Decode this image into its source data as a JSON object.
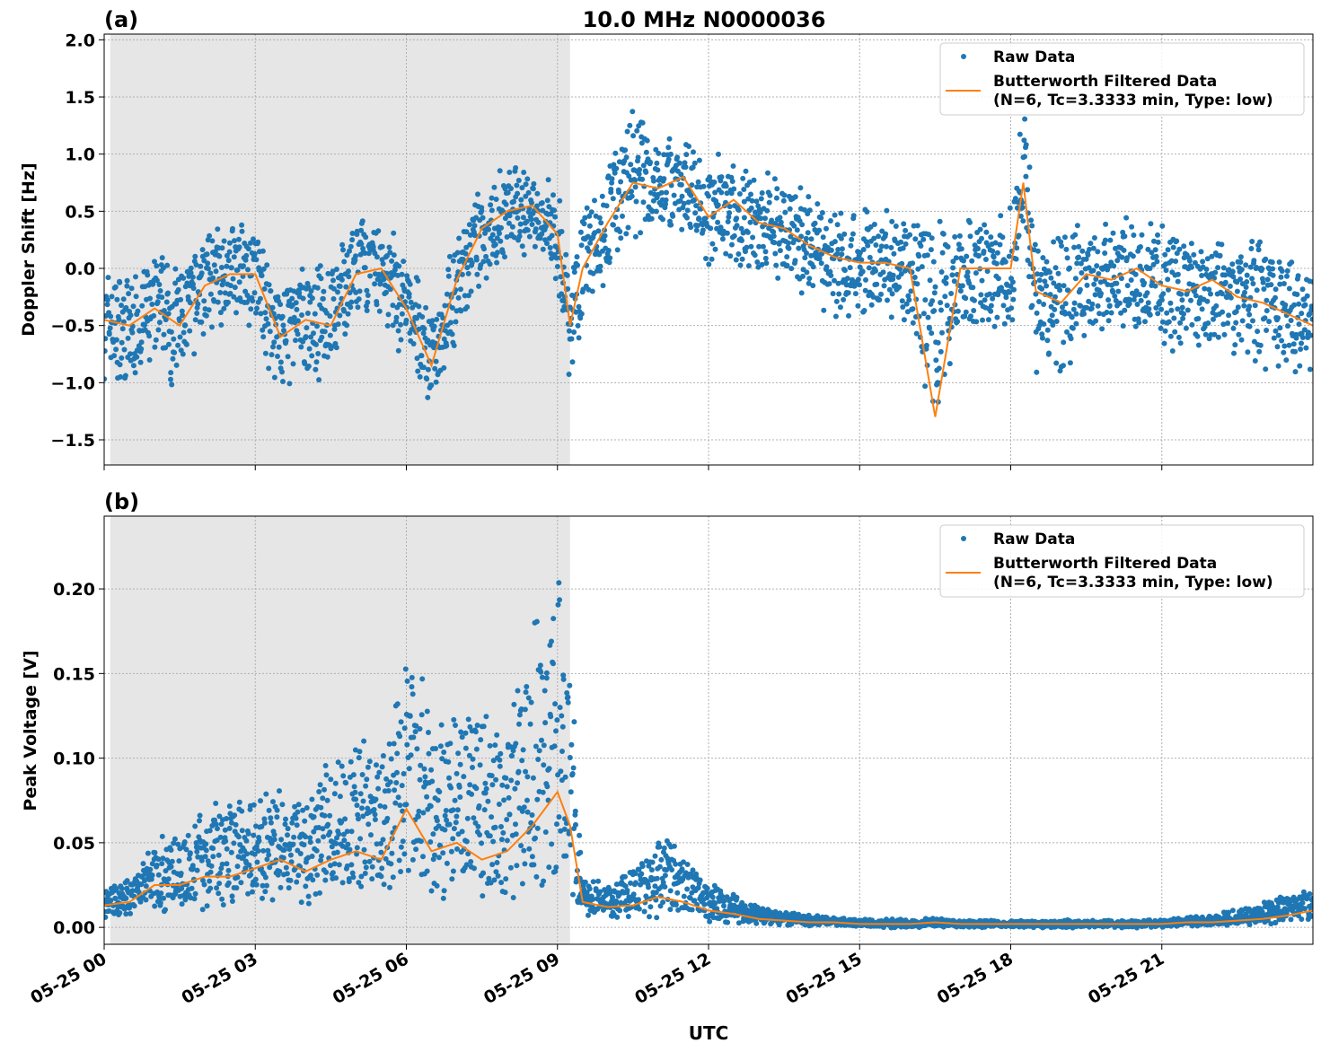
{
  "title": "10.0 MHz N0000036",
  "xlabel": "UTC",
  "x_ticks": [
    "05-25 00",
    "05-25 03",
    "05-25 06",
    "05-25 09",
    "05-25 12",
    "05-25 15",
    "05-25 18",
    "05-25 21"
  ],
  "legend": {
    "raw": "Raw Data",
    "filtered_line1": "Butterworth Filtered Data",
    "filtered_line2": "(N=6, Tc=3.3333 min, Type: low)"
  },
  "colors": {
    "raw": "#1f77b4",
    "filtered": "#ff7f0e",
    "shade": "#e6e6e6"
  },
  "chart_data": [
    {
      "type": "scatter",
      "panel_label": "(a)",
      "ylabel": "Doppler Shift [Hz]",
      "xlim_hours": [
        0,
        24
      ],
      "ylim": [
        -1.72,
        2.05
      ],
      "y_ticks": [
        "2.0",
        "1.5",
        "1.0",
        "0.5",
        "0.0",
        "−0.5",
        "−1.0",
        "−1.5"
      ],
      "y_tick_values": [
        2.0,
        1.5,
        1.0,
        0.5,
        0.0,
        -0.5,
        -1.0,
        -1.5
      ],
      "shaded_hours": [
        0.12,
        9.25
      ],
      "grid": true,
      "legend_position": "upper right",
      "x_hours": [
        0,
        0.5,
        1,
        1.5,
        2,
        2.5,
        3,
        3.5,
        4,
        4.5,
        5,
        5.5,
        6,
        6.5,
        7,
        7.5,
        8,
        8.5,
        9,
        9.25,
        9.5,
        10,
        10.5,
        11,
        11.5,
        12,
        12.5,
        13,
        13.5,
        14,
        14.5,
        15,
        15.5,
        16,
        16.5,
        17,
        17.5,
        18,
        18.25,
        18.5,
        19,
        19.5,
        20,
        20.5,
        21,
        21.5,
        22,
        22.5,
        23,
        23.5,
        24
      ],
      "filtered": [
        -0.45,
        -0.5,
        -0.35,
        -0.5,
        -0.15,
        -0.05,
        -0.05,
        -0.6,
        -0.45,
        -0.5,
        -0.05,
        0.0,
        -0.35,
        -0.85,
        -0.1,
        0.35,
        0.5,
        0.55,
        0.3,
        -0.5,
        0.0,
        0.4,
        0.75,
        0.7,
        0.8,
        0.45,
        0.6,
        0.4,
        0.35,
        0.2,
        0.1,
        0.05,
        0.05,
        0.0,
        -1.3,
        0.0,
        0.0,
        0.0,
        0.75,
        -0.2,
        -0.3,
        -0.05,
        -0.1,
        0.0,
        -0.15,
        -0.2,
        -0.1,
        -0.25,
        -0.3,
        -0.4,
        -0.5
      ],
      "raw_low": [
        -0.9,
        -1.0,
        -0.8,
        -1.0,
        -0.5,
        -0.4,
        -0.5,
        -1.1,
        -0.9,
        -0.9,
        -0.4,
        -0.4,
        -0.8,
        -1.2,
        -0.6,
        -0.1,
        0.1,
        0.2,
        -0.1,
        -1.1,
        -0.4,
        -0.1,
        0.3,
        0.3,
        0.4,
        0.05,
        0.1,
        0.0,
        -0.1,
        -0.2,
        -0.4,
        -0.4,
        -0.4,
        -0.4,
        -1.5,
        -0.5,
        -0.5,
        -0.5,
        0.2,
        -0.8,
        -0.9,
        -0.6,
        -0.6,
        -0.5,
        -0.6,
        -0.7,
        -0.6,
        -0.7,
        -0.8,
        -0.9,
        -0.9
      ],
      "raw_high": [
        0.0,
        -0.1,
        0.1,
        0.0,
        0.3,
        0.4,
        0.3,
        -0.1,
        0.0,
        0.0,
        0.4,
        0.4,
        0.1,
        -0.4,
        0.3,
        0.7,
        0.9,
        0.8,
        0.7,
        0.0,
        0.6,
        0.9,
        1.4,
        1.1,
        1.2,
        0.9,
        1.0,
        0.8,
        0.7,
        0.6,
        0.5,
        0.5,
        0.5,
        0.4,
        0.4,
        0.5,
        0.4,
        0.5,
        1.5,
        0.3,
        0.4,
        0.4,
        0.4,
        0.4,
        0.3,
        0.3,
        0.3,
        0.2,
        0.2,
        0.1,
        0.0
      ]
    },
    {
      "type": "scatter",
      "panel_label": "(b)",
      "ylabel": "Peak Voltage [V]",
      "xlim_hours": [
        0,
        24
      ],
      "ylim": [
        -0.01,
        0.243
      ],
      "y_ticks": [
        "0.20",
        "0.15",
        "0.10",
        "0.05",
        "0.00"
      ],
      "y_tick_values": [
        0.2,
        0.15,
        0.1,
        0.05,
        0.0
      ],
      "shaded_hours": [
        0.12,
        9.25
      ],
      "grid": true,
      "legend_position": "upper right",
      "x_hours": [
        0,
        0.5,
        1,
        1.5,
        2,
        2.5,
        3,
        3.5,
        4,
        4.5,
        5,
        5.5,
        6,
        6.5,
        7,
        7.5,
        8,
        8.5,
        9,
        9.25,
        9.5,
        10,
        10.5,
        11,
        11.5,
        12,
        12.5,
        13,
        13.5,
        14,
        14.5,
        15,
        15.5,
        16,
        16.5,
        17,
        17.5,
        18,
        18.5,
        19,
        19.5,
        20,
        20.5,
        21,
        21.5,
        22,
        22.5,
        23,
        23.5,
        24
      ],
      "filtered": [
        0.013,
        0.015,
        0.025,
        0.025,
        0.03,
        0.03,
        0.035,
        0.04,
        0.033,
        0.04,
        0.045,
        0.04,
        0.07,
        0.045,
        0.05,
        0.04,
        0.045,
        0.06,
        0.08,
        0.06,
        0.015,
        0.012,
        0.013,
        0.018,
        0.015,
        0.01,
        0.008,
        0.005,
        0.004,
        0.003,
        0.003,
        0.002,
        0.002,
        0.002,
        0.003,
        0.002,
        0.002,
        0.002,
        0.002,
        0.002,
        0.002,
        0.002,
        0.002,
        0.002,
        0.003,
        0.003,
        0.004,
        0.005,
        0.007,
        0.01
      ],
      "raw_low": [
        0.005,
        0.008,
        0.012,
        0.012,
        0.015,
        0.015,
        0.015,
        0.018,
        0.015,
        0.018,
        0.02,
        0.018,
        0.025,
        0.015,
        0.02,
        0.015,
        0.015,
        0.02,
        0.025,
        0.02,
        0.008,
        0.006,
        0.007,
        0.008,
        0.007,
        0.005,
        0.003,
        0.002,
        0.001,
        0.001,
        0.001,
        0.0,
        0.0,
        0.0,
        0.0,
        0.0,
        0.0,
        0.0,
        0.0,
        0.0,
        0.0,
        0.0,
        0.0,
        0.0,
        0.001,
        0.001,
        0.002,
        0.002,
        0.003,
        0.004
      ],
      "raw_high": [
        0.022,
        0.03,
        0.05,
        0.055,
        0.07,
        0.075,
        0.07,
        0.08,
        0.07,
        0.1,
        0.11,
        0.1,
        0.15,
        0.13,
        0.13,
        0.14,
        0.12,
        0.17,
        0.2,
        0.17,
        0.03,
        0.025,
        0.035,
        0.06,
        0.04,
        0.025,
        0.02,
        0.012,
        0.01,
        0.007,
        0.006,
        0.005,
        0.005,
        0.004,
        0.006,
        0.004,
        0.004,
        0.004,
        0.004,
        0.004,
        0.004,
        0.004,
        0.004,
        0.004,
        0.006,
        0.007,
        0.01,
        0.014,
        0.018,
        0.022
      ]
    }
  ]
}
